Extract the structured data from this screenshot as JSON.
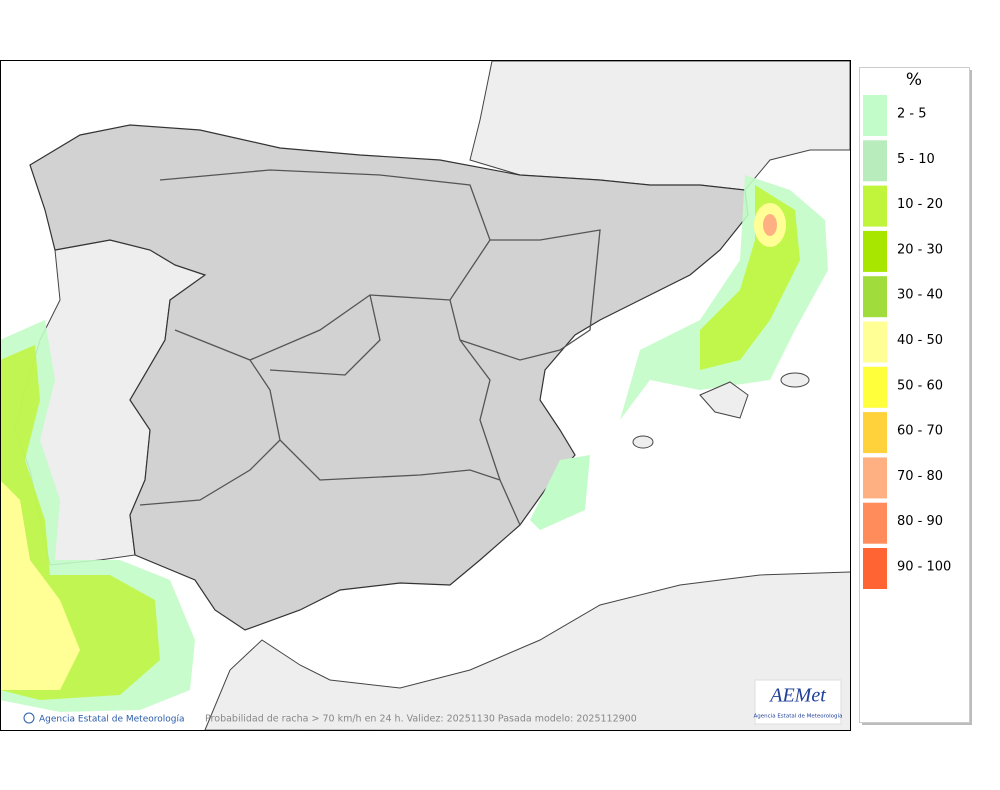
{
  "legend": {
    "title": "%",
    "items": [
      {
        "label": "2 - 5",
        "color": "#c2fcc8"
      },
      {
        "label": "5 - 10",
        "color": "#b8ecbc"
      },
      {
        "label": "10 - 20",
        "color": "#c0f53c"
      },
      {
        "label": "20 - 30",
        "color": "#a8e600"
      },
      {
        "label": "30 - 40",
        "color": "#a0dc3c"
      },
      {
        "label": "40 - 50",
        "color": "#ffff96"
      },
      {
        "label": "50 - 60",
        "color": "#ffff3c"
      },
      {
        "label": "60 - 70",
        "color": "#ffd23c"
      },
      {
        "label": "70 - 80",
        "color": "#ffb082"
      },
      {
        "label": "80 - 90",
        "color": "#ff8c5a"
      },
      {
        "label": "90 - 100",
        "color": "#ff6432"
      }
    ]
  },
  "footer": {
    "credit": "Agencia Estatal de Meteorología",
    "caption": "Probabilidad de racha > 70 km/h en 24 h. Validez: 20251130 Pasada modelo: 2025112900"
  },
  "logo": {
    "text": "AEMet",
    "subtext": "Agencia Estatal de Meteorología"
  }
}
